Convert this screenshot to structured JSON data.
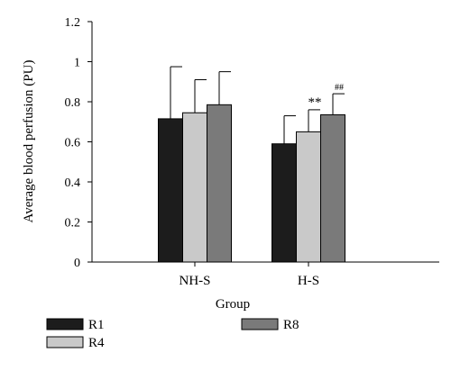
{
  "chart_data": {
    "type": "bar",
    "xlabel": "Group",
    "ylabel": "Average blood perfusion (PU)",
    "ylim": [
      0,
      1.2
    ],
    "yticks": [
      0,
      0.2,
      0.4,
      0.6,
      0.8,
      1,
      1.2
    ],
    "ytick_labels": [
      "0",
      "0.2",
      "0.4",
      "0.6",
      "0.8",
      "1",
      "1.2"
    ],
    "categories": [
      "NH-S",
      "H-S"
    ],
    "series": [
      {
        "name": "R1",
        "color": "#1c1c1c",
        "values": [
          0.715,
          0.59
        ],
        "errors": [
          0.26,
          0.14
        ]
      },
      {
        "name": "R4",
        "color": "#c9c9c9",
        "values": [
          0.745,
          0.65
        ],
        "errors": [
          0.165,
          0.11
        ]
      },
      {
        "name": "R8",
        "color": "#7a7a7a",
        "values": [
          0.785,
          0.735
        ],
        "errors": [
          0.165,
          0.105
        ]
      }
    ],
    "annotations": [
      {
        "category": "H-S",
        "series": "R4",
        "text": "**"
      },
      {
        "category": "H-S",
        "series": "R8",
        "text": "##"
      }
    ],
    "legend_position": "bottom",
    "grid": false
  }
}
